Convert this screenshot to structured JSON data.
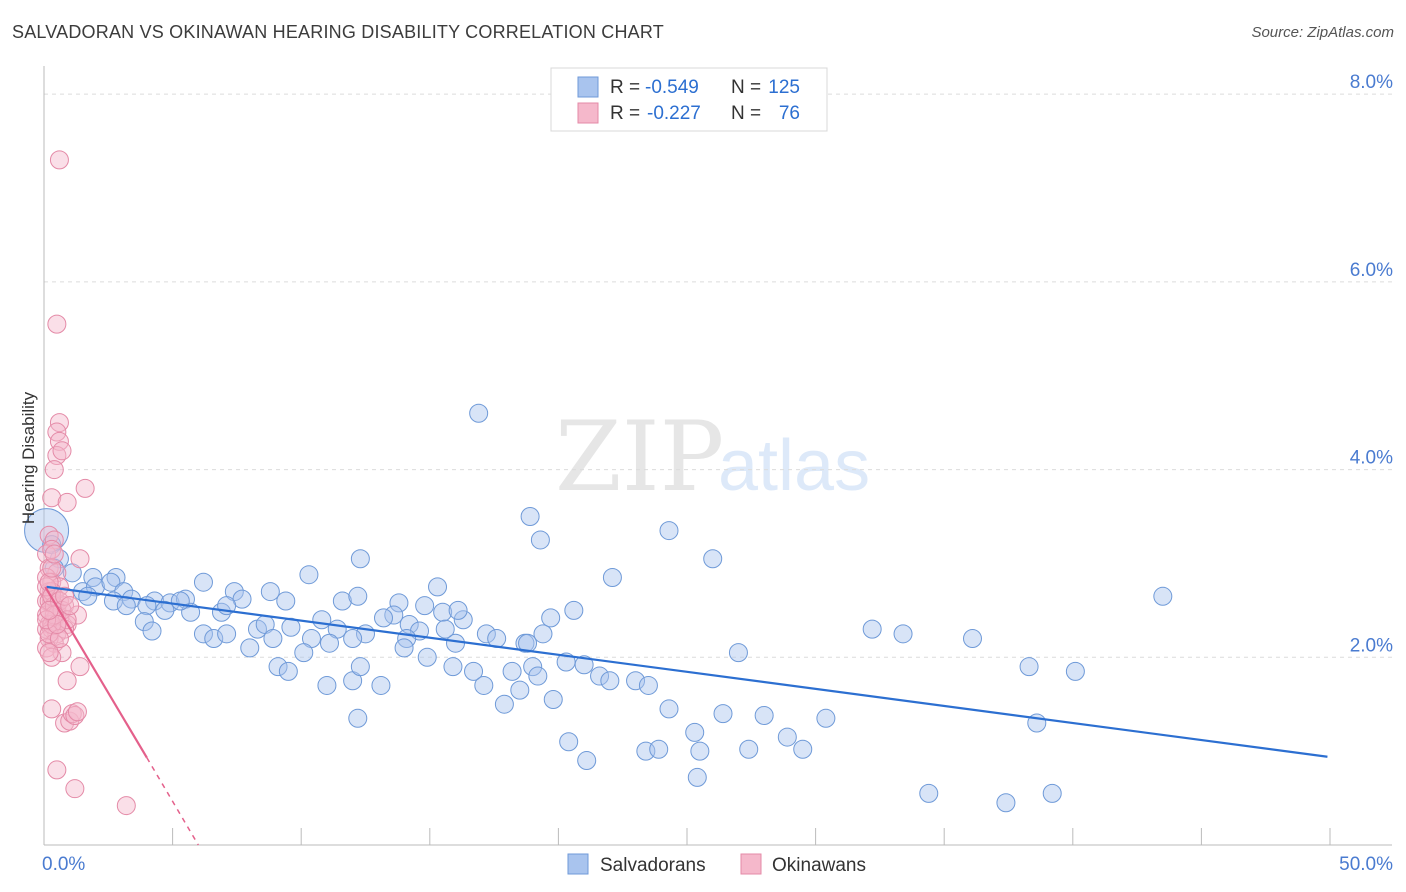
{
  "header": {
    "title": "SALVADORAN VS OKINAWAN HEARING DISABILITY CORRELATION CHART",
    "source": "Source: ZipAtlas.com"
  },
  "watermark": {
    "zip": "ZIP",
    "atlas": "atlas"
  },
  "legend_top": [
    {
      "r_label": "R =",
      "r_value": "-0.549",
      "n_label": "N =",
      "n_value": "125",
      "color": "#a9c4ee",
      "stroke": "#6f9ad8"
    },
    {
      "r_label": "R =",
      "r_value": "-0.227",
      "n_label": "N =",
      "n_value": "76",
      "color": "#f5b8cb",
      "stroke": "#e48aa7"
    }
  ],
  "legend_bottom": [
    {
      "label": "Salvadorans",
      "color": "#a9c4ee",
      "stroke": "#6f9ad8"
    },
    {
      "label": "Okinawans",
      "color": "#f5b8cb",
      "stroke": "#e48aa7"
    }
  ],
  "chart_data": {
    "type": "scatter",
    "title": "SALVADORAN VS OKINAWAN HEARING DISABILITY CORRELATION CHART",
    "xlabel": "",
    "ylabel": "Hearing Disability",
    "xlim": [
      0,
      50
    ],
    "ylim": [
      0,
      8.3
    ],
    "x_tick_labels": [
      "0.0%",
      "50.0%"
    ],
    "y_ticks": [
      2.0,
      4.0,
      6.0,
      8.0
    ],
    "y_tick_labels": [
      "2.0%",
      "4.0%",
      "6.0%",
      "8.0%"
    ],
    "grid": true,
    "series": [
      {
        "name": "Salvadorans",
        "color": "#a9c4ee",
        "stroke": "#6f9ad8",
        "trend": {
          "x": [
            0.1,
            49.9
          ],
          "y": [
            2.75,
            0.94
          ],
          "color": "#2c6fd1"
        },
        "points": [
          [
            0.1,
            3.35
          ],
          [
            0.3,
            3.2
          ],
          [
            0.6,
            3.05
          ],
          [
            0.4,
            2.95
          ],
          [
            1.1,
            2.9
          ],
          [
            1.9,
            2.85
          ],
          [
            2.8,
            2.85
          ],
          [
            1.5,
            2.7
          ],
          [
            2.0,
            2.75
          ],
          [
            2.6,
            2.8
          ],
          [
            3.1,
            2.7
          ],
          [
            1.7,
            2.65
          ],
          [
            2.7,
            2.6
          ],
          [
            3.4,
            2.62
          ],
          [
            3.2,
            2.55
          ],
          [
            4.3,
            2.6
          ],
          [
            4.9,
            2.58
          ],
          [
            5.5,
            2.62
          ],
          [
            4.0,
            2.55
          ],
          [
            4.7,
            2.5
          ],
          [
            5.7,
            2.48
          ],
          [
            3.9,
            2.38
          ],
          [
            6.9,
            2.48
          ],
          [
            7.4,
            2.7
          ],
          [
            7.7,
            2.62
          ],
          [
            8.8,
            2.7
          ],
          [
            9.4,
            2.6
          ],
          [
            10.3,
            2.88
          ],
          [
            11.6,
            2.6
          ],
          [
            12.2,
            2.65
          ],
          [
            13.8,
            2.58
          ],
          [
            14.8,
            2.55
          ],
          [
            15.3,
            2.75
          ],
          [
            4.2,
            2.28
          ],
          [
            6.2,
            2.25
          ],
          [
            6.6,
            2.2
          ],
          [
            7.1,
            2.25
          ],
          [
            8.3,
            2.3
          ],
          [
            8.6,
            2.35
          ],
          [
            9.6,
            2.32
          ],
          [
            10.8,
            2.4
          ],
          [
            11.4,
            2.3
          ],
          [
            12.5,
            2.25
          ],
          [
            13.6,
            2.45
          ],
          [
            14.2,
            2.35
          ],
          [
            15.5,
            2.48
          ],
          [
            16.3,
            2.4
          ],
          [
            8.0,
            2.1
          ],
          [
            8.9,
            2.2
          ],
          [
            10.4,
            2.2
          ],
          [
            11.1,
            2.15
          ],
          [
            12.0,
            2.2
          ],
          [
            14.6,
            2.28
          ],
          [
            16.0,
            2.15
          ],
          [
            17.2,
            2.25
          ],
          [
            18.7,
            2.15
          ],
          [
            19.7,
            2.42
          ],
          [
            20.6,
            2.5
          ],
          [
            9.1,
            1.9
          ],
          [
            9.5,
            1.85
          ],
          [
            10.1,
            2.05
          ],
          [
            12.0,
            1.75
          ],
          [
            12.3,
            1.9
          ],
          [
            13.1,
            1.7
          ],
          [
            14.1,
            2.2
          ],
          [
            14.9,
            2.0
          ],
          [
            15.9,
            1.9
          ],
          [
            16.7,
            1.85
          ],
          [
            17.1,
            1.7
          ],
          [
            18.2,
            1.85
          ],
          [
            18.5,
            1.65
          ],
          [
            19.0,
            1.9
          ],
          [
            19.2,
            1.8
          ],
          [
            20.3,
            1.95
          ],
          [
            21.0,
            1.92
          ],
          [
            21.6,
            1.8
          ],
          [
            22.0,
            1.75
          ],
          [
            23.0,
            1.75
          ],
          [
            23.5,
            1.7
          ],
          [
            24.3,
            1.45
          ],
          [
            25.3,
            1.2
          ],
          [
            26.0,
            3.05
          ],
          [
            27.0,
            2.05
          ],
          [
            18.8,
            2.15
          ],
          [
            19.4,
            2.25
          ],
          [
            11.0,
            1.7
          ],
          [
            12.2,
            1.35
          ],
          [
            17.9,
            1.5
          ],
          [
            19.8,
            1.55
          ],
          [
            20.4,
            1.1
          ],
          [
            21.1,
            0.9
          ],
          [
            23.4,
            1.0
          ],
          [
            23.9,
            1.02
          ],
          [
            25.4,
            0.72
          ],
          [
            25.5,
            1.0
          ],
          [
            26.4,
            1.4
          ],
          [
            27.4,
            1.02
          ],
          [
            28.0,
            1.38
          ],
          [
            28.9,
            1.15
          ],
          [
            29.5,
            1.02
          ],
          [
            30.4,
            1.35
          ],
          [
            32.2,
            2.3
          ],
          [
            33.4,
            2.25
          ],
          [
            36.1,
            2.2
          ],
          [
            38.3,
            1.9
          ],
          [
            39.2,
            0.55
          ],
          [
            40.1,
            1.85
          ],
          [
            34.4,
            0.55
          ],
          [
            37.4,
            0.45
          ],
          [
            38.6,
            1.3
          ],
          [
            24.3,
            3.35
          ],
          [
            22.1,
            2.85
          ],
          [
            18.9,
            3.5
          ],
          [
            16.9,
            4.6
          ],
          [
            19.3,
            3.25
          ],
          [
            12.3,
            3.05
          ],
          [
            15.6,
            2.3
          ],
          [
            14.0,
            2.1
          ],
          [
            16.1,
            2.5
          ],
          [
            17.6,
            2.2
          ],
          [
            13.2,
            2.42
          ],
          [
            43.5,
            2.65
          ],
          [
            5.3,
            2.6
          ],
          [
            7.1,
            2.55
          ],
          [
            6.2,
            2.8
          ]
        ]
      },
      {
        "name": "Okinawans",
        "color": "#f5b8cb",
        "stroke": "#e48aa7",
        "trend": {
          "x": [
            0.05,
            4.0
          ],
          "y": [
            2.75,
            0.93
          ],
          "color": "#e4608b",
          "extension": {
            "x": [
              4.0,
              6.0
            ],
            "y": [
              0.93,
              0.0
            ]
          }
        },
        "points": [
          [
            0.6,
            7.3
          ],
          [
            0.5,
            5.55
          ],
          [
            0.6,
            4.5
          ],
          [
            0.5,
            4.4
          ],
          [
            0.6,
            4.3
          ],
          [
            0.5,
            4.15
          ],
          [
            0.7,
            4.2
          ],
          [
            0.4,
            4.0
          ],
          [
            1.6,
            3.8
          ],
          [
            0.3,
            3.7
          ],
          [
            0.9,
            3.65
          ],
          [
            0.2,
            3.3
          ],
          [
            0.4,
            3.25
          ],
          [
            0.1,
            3.1
          ],
          [
            0.3,
            3.15
          ],
          [
            1.4,
            3.05
          ],
          [
            0.2,
            2.95
          ],
          [
            0.5,
            2.9
          ],
          [
            0.1,
            2.85
          ],
          [
            0.3,
            2.8
          ],
          [
            0.6,
            2.75
          ],
          [
            0.2,
            2.7
          ],
          [
            0.4,
            2.65
          ],
          [
            0.1,
            2.6
          ],
          [
            0.3,
            2.6
          ],
          [
            0.8,
            2.55
          ],
          [
            0.2,
            2.5
          ],
          [
            0.5,
            2.5
          ],
          [
            1.3,
            2.45
          ],
          [
            0.1,
            2.45
          ],
          [
            0.4,
            2.4
          ],
          [
            0.6,
            2.4
          ],
          [
            0.2,
            2.35
          ],
          [
            0.9,
            2.35
          ],
          [
            0.1,
            2.3
          ],
          [
            0.3,
            2.3
          ],
          [
            0.5,
            2.25
          ],
          [
            0.2,
            2.2
          ],
          [
            0.4,
            2.15
          ],
          [
            0.1,
            2.1
          ],
          [
            0.7,
            2.05
          ],
          [
            0.3,
            2.0
          ],
          [
            1.4,
            1.9
          ],
          [
            0.9,
            1.75
          ],
          [
            0.3,
            1.45
          ],
          [
            0.8,
            1.3
          ],
          [
            1.0,
            1.32
          ],
          [
            1.1,
            1.4
          ],
          [
            1.2,
            1.38
          ],
          [
            1.3,
            1.42
          ],
          [
            0.5,
            0.8
          ],
          [
            1.2,
            0.6
          ],
          [
            3.2,
            0.42
          ],
          [
            0.2,
            2.6
          ],
          [
            0.3,
            2.7
          ],
          [
            0.4,
            2.55
          ],
          [
            0.1,
            2.75
          ],
          [
            0.2,
            2.8
          ],
          [
            0.3,
            2.65
          ],
          [
            0.5,
            2.45
          ],
          [
            0.6,
            2.6
          ],
          [
            0.7,
            2.5
          ],
          [
            0.8,
            2.3
          ],
          [
            0.9,
            2.4
          ],
          [
            0.3,
            2.35
          ],
          [
            0.4,
            2.45
          ],
          [
            0.2,
            2.25
          ],
          [
            0.1,
            2.4
          ],
          [
            0.6,
            2.2
          ],
          [
            0.5,
            2.35
          ],
          [
            0.2,
            2.05
          ],
          [
            0.8,
            2.65
          ],
          [
            1.0,
            2.55
          ],
          [
            0.3,
            2.95
          ],
          [
            0.4,
            3.1
          ],
          [
            0.2,
            2.5
          ]
        ]
      }
    ]
  }
}
